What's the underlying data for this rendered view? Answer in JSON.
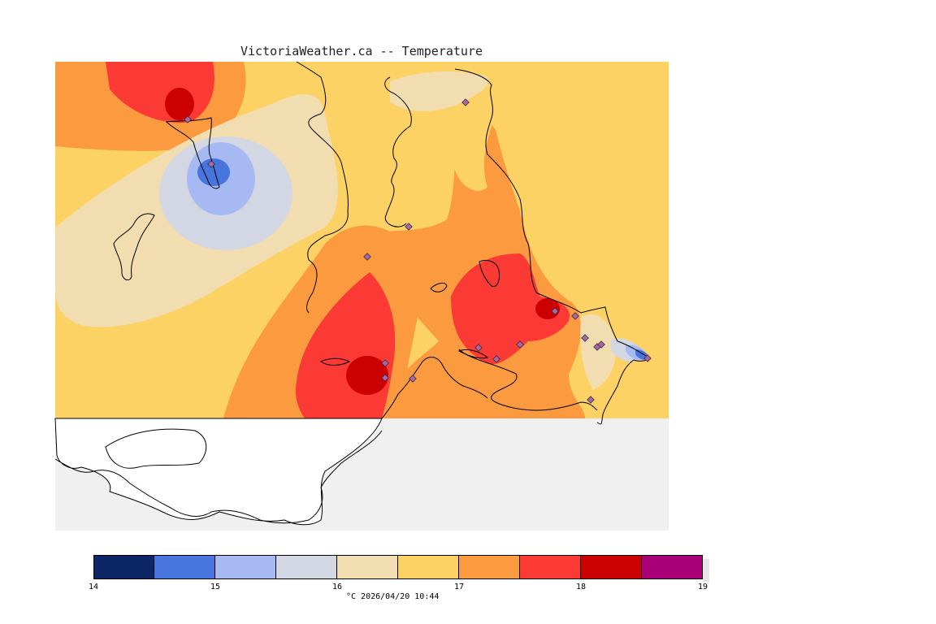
{
  "title": "VictoriaWeather.ca -- Temperature",
  "legend": {
    "ticks": [
      "14",
      "15",
      "16",
      "17",
      "18",
      "19"
    ],
    "bins": [
      {
        "from": 14.0,
        "to": 14.5,
        "color": "#0d2766"
      },
      {
        "from": 14.5,
        "to": 15.0,
        "color": "#4774dd"
      },
      {
        "from": 15.0,
        "to": 15.5,
        "color": "#a7b9f3"
      },
      {
        "from": 15.5,
        "to": 16.0,
        "color": "#d3d6e3"
      },
      {
        "from": 16.0,
        "to": 16.5,
        "color": "#f1ddb0"
      },
      {
        "from": 16.5,
        "to": 17.0,
        "color": "#fdd265"
      },
      {
        "from": 17.0,
        "to": 17.5,
        "color": "#fc9a3f"
      },
      {
        "from": 17.5,
        "to": 18.0,
        "color": "#fc3a35"
      },
      {
        "from": 18.0,
        "to": 18.5,
        "color": "#cc0000"
      },
      {
        "from": 18.5,
        "to": 19.0,
        "color": "#aa0077"
      }
    ],
    "caption": "°C  2026/04/20 10:44"
  },
  "colors": {
    "no_data": "#f0f0f0",
    "coastline": "#000000",
    "station_marker": "#aa66aa"
  }
}
